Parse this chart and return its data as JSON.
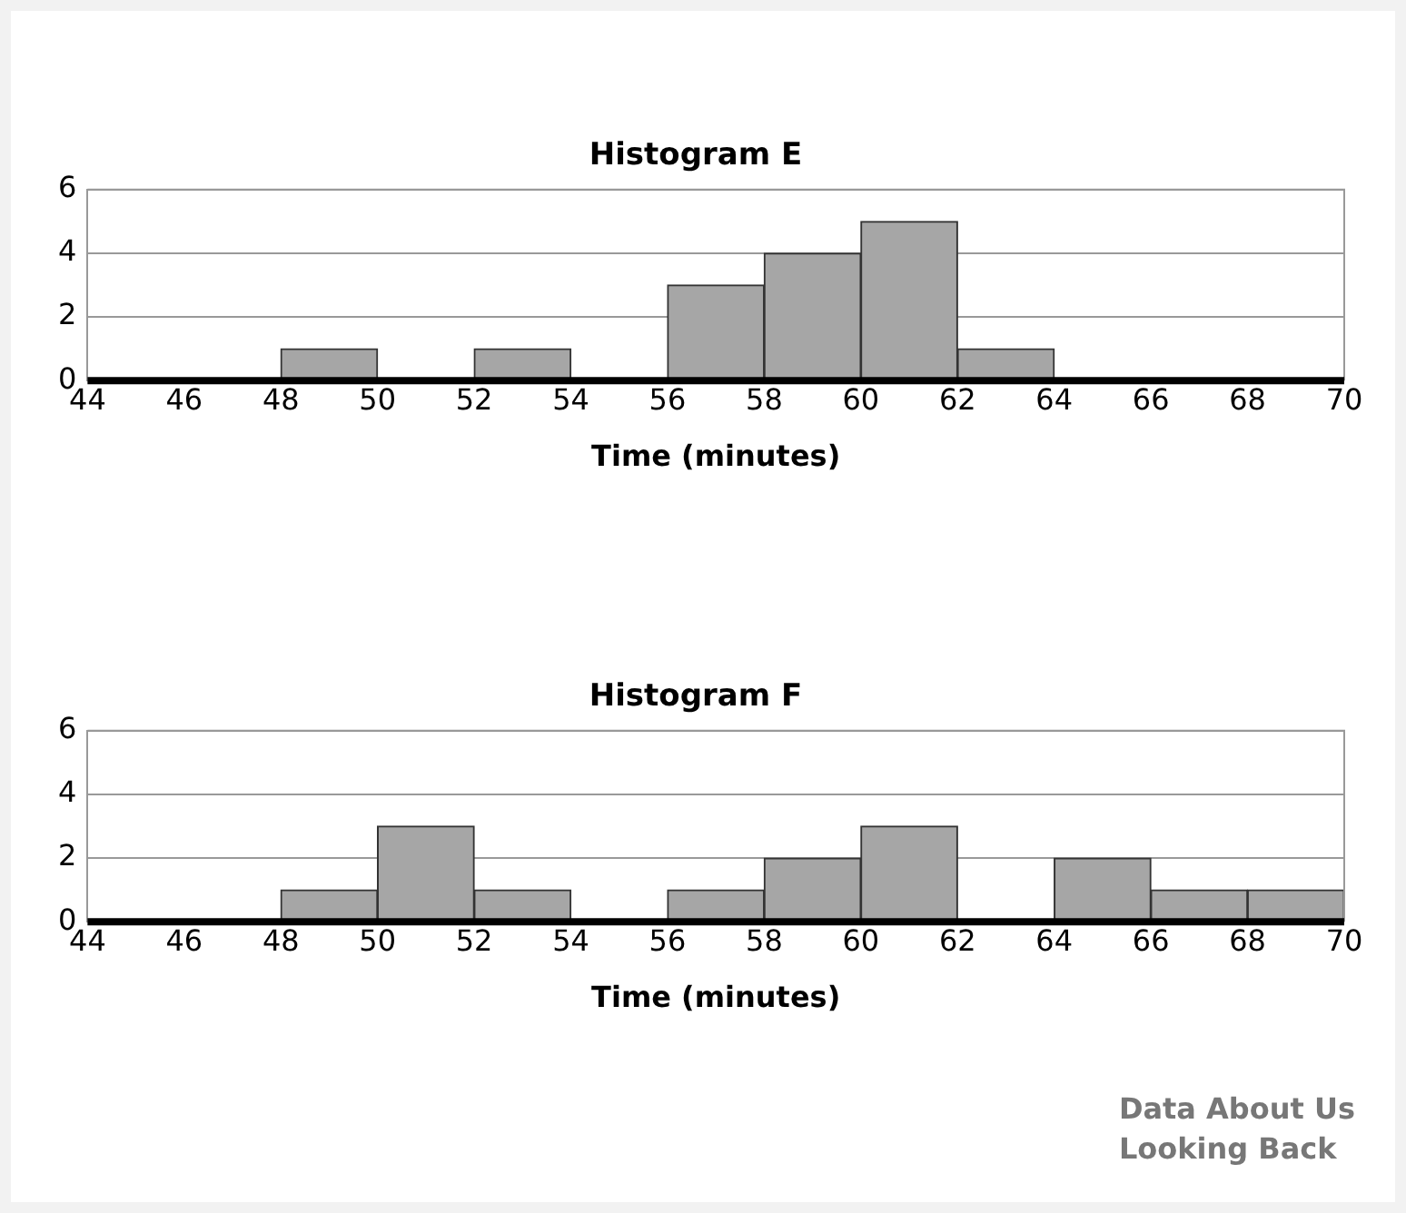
{
  "chart_data": [
    {
      "type": "histogram",
      "title": "Histogram E",
      "xlabel": "Time (minutes)",
      "bins": [
        44,
        46,
        48,
        50,
        52,
        54,
        56,
        58,
        60,
        62,
        64,
        66,
        68,
        70
      ],
      "values": [
        0,
        0,
        1,
        0,
        1,
        0,
        3,
        4,
        5,
        1,
        0,
        0,
        0
      ],
      "color": "#a6a6a6",
      "xlim": [
        44,
        70
      ],
      "xticks": [
        44,
        46,
        48,
        50,
        52,
        54,
        56,
        58,
        60,
        62,
        64,
        66,
        68,
        70
      ],
      "ylim": [
        0,
        6
      ],
      "yticks": [
        0,
        2,
        4,
        6
      ],
      "grid": "y"
    },
    {
      "type": "histogram",
      "title": "Histogram F",
      "xlabel": "Time (minutes)",
      "bins": [
        44,
        46,
        48,
        50,
        52,
        54,
        56,
        58,
        60,
        62,
        64,
        66,
        68,
        70
      ],
      "values": [
        0,
        0,
        1,
        3,
        1,
        0,
        1,
        2,
        3,
        0,
        2,
        1,
        1
      ],
      "color": "#a6a6a6",
      "xlim": [
        44,
        70
      ],
      "xticks": [
        44,
        46,
        48,
        50,
        52,
        54,
        56,
        58,
        60,
        62,
        64,
        66,
        68,
        70
      ],
      "ylim": [
        0,
        6
      ],
      "yticks": [
        0,
        2,
        4,
        6
      ],
      "grid": "y",
      "annotations": [
        "Data About Us",
        "Looking Back"
      ]
    }
  ]
}
